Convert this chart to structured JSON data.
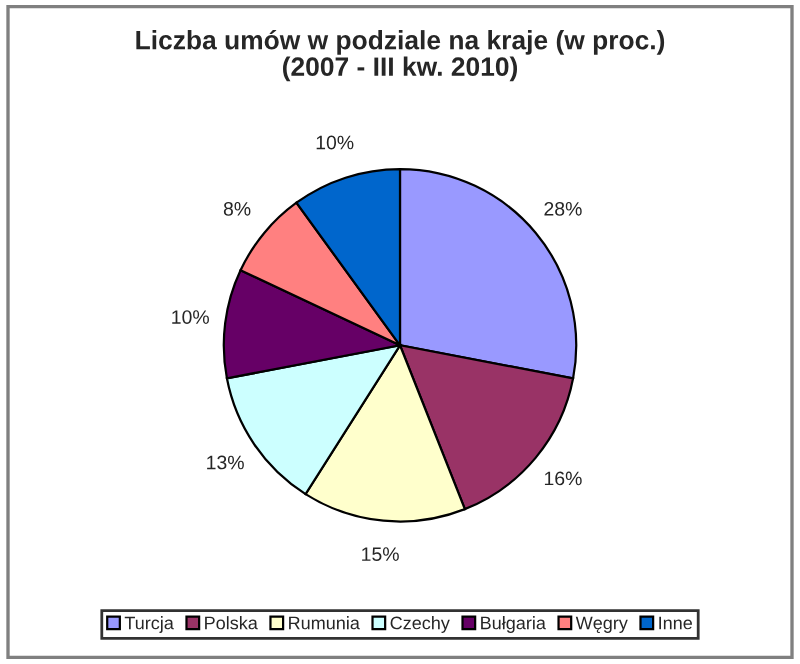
{
  "chart_data": {
    "type": "pie",
    "title": "Liczba umów w podziale na kraje (w proc.)\n(2007 - III kw. 2010)",
    "categories": [
      "Turcja",
      "Polska",
      "Rumunia",
      "Czechy",
      "Bułgaria",
      "Węgry",
      "Inne"
    ],
    "values": [
      28,
      16,
      15,
      13,
      10,
      8,
      10
    ],
    "colors": [
      "#9999ff",
      "#993366",
      "#ffffcc",
      "#ccffff",
      "#660066",
      "#ff8080",
      "#0066cc"
    ],
    "value_labels": [
      "28%",
      "16%",
      "15%",
      "13%",
      "10%",
      "8%",
      "10%"
    ],
    "legend": "bottom"
  }
}
